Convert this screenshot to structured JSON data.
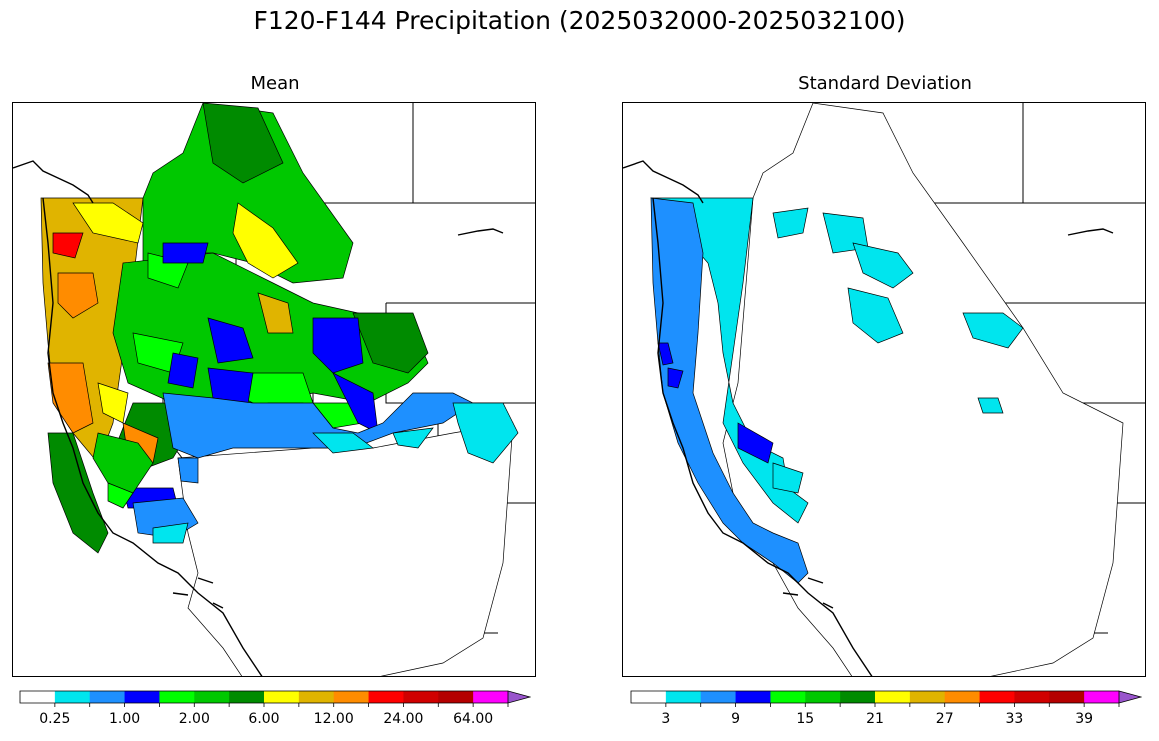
{
  "figure": {
    "suptitle": "F120-F144 Precipitation (2025032000-2025032100)"
  },
  "panels": [
    {
      "id": "mean",
      "title": "Mean",
      "legend_ticks": [
        "0.25",
        "1.00",
        "2.00",
        "6.00",
        "12.00",
        "24.00",
        "64.00"
      ],
      "colors": [
        "#ffffff",
        "#00e5ee",
        "#1e90ff",
        "#0000ff",
        "#00ff00",
        "#00c800",
        "#008b00",
        "#ffff00",
        "#e0b400",
        "#ff8c00",
        "#ff0000",
        "#d00000",
        "#b40000",
        "#ff00ff",
        "#9955cc"
      ]
    },
    {
      "id": "stddev",
      "title": "Standard Deviation",
      "legend_ticks": [
        "3",
        "9",
        "15",
        "21",
        "27",
        "33",
        "39"
      ],
      "colors": [
        "#ffffff",
        "#00e5ee",
        "#1e90ff",
        "#0000ff",
        "#00ff00",
        "#00c800",
        "#008b00",
        "#ffff00",
        "#e0b400",
        "#ff8c00",
        "#ff0000",
        "#d00000",
        "#b40000",
        "#ff00ff",
        "#9955cc"
      ]
    }
  ]
}
